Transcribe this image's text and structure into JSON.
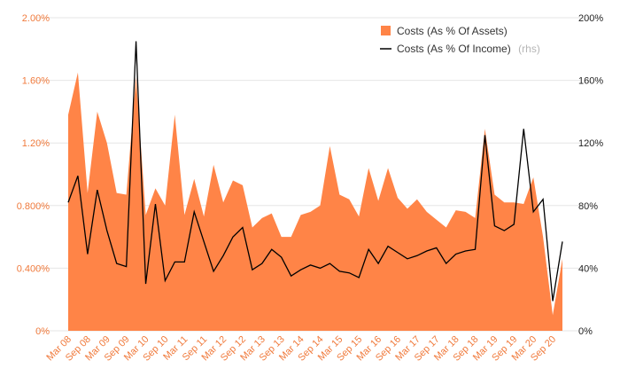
{
  "colors": {
    "area": "#ff8447",
    "line": "#000000",
    "left_axis_text": "#f07a3c",
    "right_axis_text": "#222222",
    "grid": "#e6e6e6"
  },
  "legend": {
    "area_label": "Costs (As % Of Assets)",
    "line_label": "Costs (As % Of Income)",
    "line_suffix": "(rhs)"
  },
  "chart_data": {
    "type": "area",
    "grid": true,
    "legend_position": "top-right",
    "x_tick_labels": [
      "Mar 08",
      "Sep 08",
      "Mar 09",
      "Sep 09",
      "Mar 10",
      "Sep 10",
      "Mar 11",
      "Sep 11",
      "Mar 12",
      "Sep 12",
      "Mar 13",
      "Sep 13",
      "Mar 14",
      "Sep 14",
      "Mar 15",
      "Sep 15",
      "Mar 16",
      "Sep 16",
      "Mar 17",
      "Sep 17",
      "Mar 18",
      "Sep 18",
      "Mar 19",
      "Sep 19",
      "Mar 20",
      "Sep 20"
    ],
    "left_axis": {
      "range": [
        0,
        2.0
      ],
      "tick_values": [
        0,
        0.4,
        0.8,
        1.2,
        1.6,
        2.0
      ],
      "tick_labels": [
        "0%",
        "0.400%",
        "0.800%",
        "1.20%",
        "1.60%",
        "2.00%"
      ]
    },
    "right_axis": {
      "range": [
        0,
        200
      ],
      "tick_values": [
        0,
        40,
        80,
        120,
        160,
        200
      ],
      "tick_labels": [
        "0%",
        "40%",
        "80%",
        "120%",
        "160%",
        "200%"
      ]
    },
    "series": [
      {
        "name": "Costs (As % Of Assets)",
        "type": "area",
        "axis": "left",
        "values": [
          1.38,
          1.65,
          0.88,
          1.4,
          1.2,
          0.88,
          0.87,
          1.62,
          0.74,
          0.91,
          0.8,
          1.38,
          0.74,
          0.97,
          0.73,
          1.06,
          0.82,
          0.96,
          0.93,
          0.66,
          0.72,
          0.75,
          0.6,
          0.6,
          0.74,
          0.76,
          0.8,
          1.18,
          0.87,
          0.84,
          0.73,
          1.04,
          0.83,
          1.04,
          0.85,
          0.78,
          0.84,
          0.76,
          0.71,
          0.66,
          0.77,
          0.76,
          0.72,
          1.29,
          0.87,
          0.82,
          0.82,
          0.81,
          0.98,
          0.6,
          0.1,
          0.46
        ]
      },
      {
        "name": "Costs (As % Of Income)",
        "type": "line",
        "axis": "right",
        "values": [
          82,
          99,
          49,
          90,
          64,
          43,
          41,
          185,
          30,
          81,
          32,
          44,
          44,
          76,
          57,
          38,
          48,
          60,
          66,
          39,
          43,
          52,
          47,
          35,
          39,
          42,
          40,
          43,
          38,
          37,
          34,
          52,
          43,
          54,
          50,
          46,
          48,
          51,
          53,
          43,
          49,
          51,
          52,
          125,
          67,
          64,
          68,
          129,
          76,
          84,
          19,
          57
        ]
      }
    ]
  }
}
